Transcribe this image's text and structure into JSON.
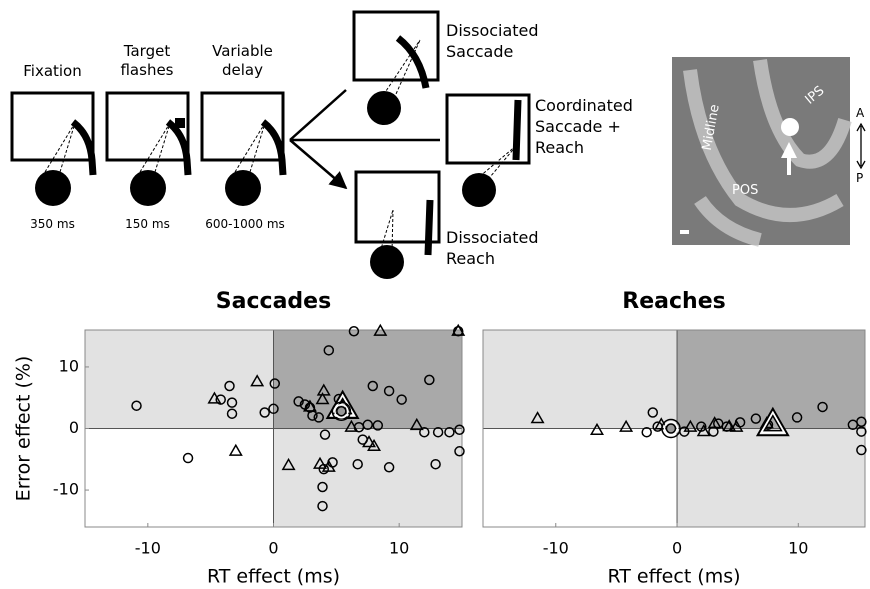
{
  "diagram": {
    "phases": [
      {
        "label": "Fixation",
        "duration": "350 ms"
      },
      {
        "label": "Target flashes",
        "duration": "150 ms"
      },
      {
        "label": "Variable delay",
        "duration": "600-1000 ms"
      }
    ],
    "conditions": [
      "Dissociated Saccade",
      "Coordinated Saccade + Reach",
      "Dissociated Reach"
    ]
  },
  "brain": {
    "labels": [
      "Midline",
      "IPS",
      "POS"
    ],
    "directions": [
      "A",
      "P"
    ]
  },
  "chart_data": [
    {
      "type": "scatter",
      "title": "Saccades",
      "xlabel": "RT effect (ms)",
      "ylabel": "Error effect (%)",
      "xlim": [
        -15,
        15
      ],
      "ylim": [
        -16,
        16
      ],
      "xticks": [
        -10,
        0,
        10
      ],
      "yticks": [
        -10,
        0,
        10
      ],
      "quadrant_colors": {
        "upper_left": "#e2e2e2",
        "upper_right": "#a9a9a9",
        "lower_right": "#e2e2e2",
        "lower_left": "#ffffff"
      },
      "series": [
        {
          "marker": "circle",
          "color": "#000000",
          "x": [
            -10.9,
            -6.8,
            -3.5,
            -4.2,
            -3.3,
            -3.3,
            -0.7,
            0.1,
            0,
            2.0,
            2.5,
            2.9,
            3.1,
            3.6,
            4.4,
            4.1,
            3.9,
            3.9,
            4.0,
            4.7,
            5.2,
            5.9,
            6.4,
            6.7,
            6.8,
            7.1,
            7.9,
            7.5,
            8.3,
            9.2,
            9.2,
            10.2,
            12.4,
            12.9,
            12.0,
            13.1,
            14.0,
            14.8,
            14.8,
            14.7
          ],
          "y": [
            3.7,
            -4.8,
            6.9,
            4.7,
            4.2,
            2.4,
            2.6,
            7.3,
            3.2,
            4.4,
            3.9,
            3.4,
            2.1,
            1.8,
            12.7,
            -1.0,
            -9.5,
            -12.6,
            -6.6,
            -5.5,
            4.8,
            2.7,
            15.8,
            -5.8,
            0.2,
            -1.8,
            6.9,
            0.6,
            0.5,
            6.1,
            -6.3,
            4.7,
            7.9,
            -5.8,
            -0.6,
            -0.6,
            -0.6,
            -0.2,
            -3.7,
            15.8
          ]
        },
        {
          "marker": "triangle",
          "color": "#000000",
          "x": [
            -4.7,
            -1.3,
            -3.0,
            1.2,
            3.7,
            4.0,
            3.9,
            4.4,
            2.9,
            6.2,
            7.6,
            8.5,
            11.4,
            14.7,
            8.0
          ],
          "y": [
            4.8,
            7.6,
            -3.7,
            -6.0,
            -5.8,
            6.1,
            4.7,
            -6.3,
            3.5,
            0.2,
            -2.3,
            15.8,
            0.5,
            15.8,
            -2.9
          ]
        },
        {
          "marker": "mean-triangle",
          "color": "#000000",
          "x": [
            5.5
          ],
          "y": [
            3.4
          ]
        },
        {
          "marker": "mean-circle",
          "color": "#000000",
          "x": [
            5.4
          ],
          "y": [
            2.8
          ]
        }
      ]
    },
    {
      "type": "scatter",
      "title": "Reaches",
      "xlabel": "RT effect (ms)",
      "xlim": [
        -16,
        15.5
      ],
      "ylim": [
        -16,
        16
      ],
      "xticks": [
        -10,
        0,
        10
      ],
      "quadrant_colors": {
        "upper_left": "#e2e2e2",
        "upper_right": "#a9a9a9",
        "lower_right": "#e2e2e2",
        "lower_left": "#ffffff"
      },
      "series": [
        {
          "marker": "circle",
          "color": "#000000",
          "x": [
            -2.5,
            -2.0,
            -1.6,
            0.6,
            2.0,
            3.0,
            3.4,
            4.1,
            5.2,
            6.5,
            7.5,
            9.9,
            12.0,
            14.5,
            15.2,
            15.2,
            15.2
          ],
          "y": [
            -0.6,
            2.6,
            0.3,
            -0.5,
            0.3,
            -0.5,
            0.8,
            0.3,
            1.0,
            1.6,
            0.6,
            1.8,
            3.5,
            0.6,
            1.1,
            -0.5,
            -3.5
          ]
        },
        {
          "marker": "triangle",
          "color": "#000000",
          "x": [
            -11.5,
            -6.6,
            -4.2,
            -1.3,
            1.1,
            2.2,
            3.1,
            4.3,
            4.9,
            7.4
          ],
          "y": [
            1.6,
            -0.3,
            0.2,
            0.6,
            0.2,
            -0.5,
            0.8,
            0.3,
            0.2,
            0.8
          ]
        },
        {
          "marker": "mean-triangle",
          "color": "#000000",
          "x": [
            7.9
          ],
          "y": [
            0.6
          ]
        },
        {
          "marker": "mean-circle",
          "color": "#000000",
          "x": [
            -0.5
          ],
          "y": [
            0
          ]
        }
      ]
    }
  ]
}
